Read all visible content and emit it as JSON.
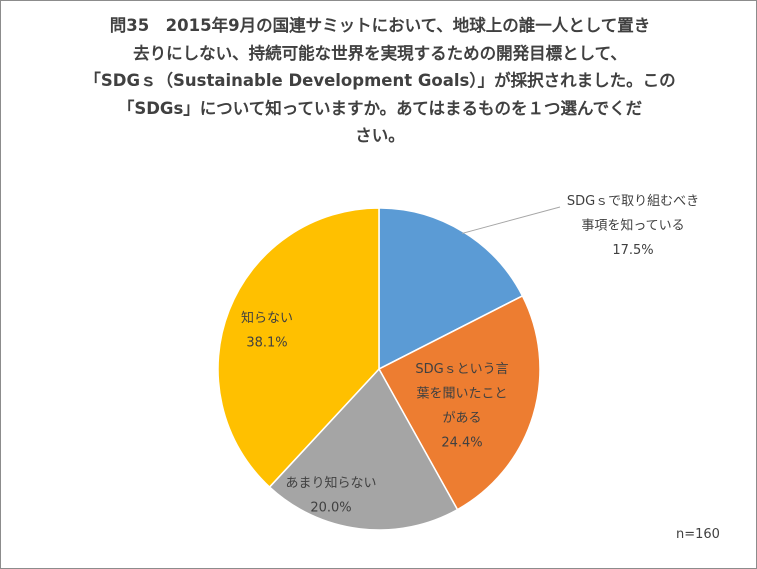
{
  "title_lines": [
    "問35　2015年9月の国連サミットにおいて、地球上の誰一人として置き",
    "去りにしない、持続可能な世界を実現するための開発目標として、",
    "「SDGｓ（Sustainable Development Goals）」が採択されました。この",
    "「SDGs」について知っていますか。あてはまるものを１つ選んでくだ",
    "さい。"
  ],
  "sample_size": "n=160",
  "chart_data": {
    "type": "pie",
    "start": "12 o'clock",
    "direction": "clockwise",
    "slices": [
      {
        "label_lines": [
          "SDGｓで取り組むべき",
          "事項を知っている"
        ],
        "value": 17.5,
        "pct": "17.5%",
        "color": "#5b9bd5"
      },
      {
        "label_lines": [
          "SDGｓという言",
          "葉を聞いたこと",
          "がある"
        ],
        "value": 24.4,
        "pct": "24.4%",
        "color": "#ed7d31"
      },
      {
        "label_lines": [
          "あまり知らない"
        ],
        "value": 20.0,
        "pct": "20.0%",
        "color": "#a5a5a5"
      },
      {
        "label_lines": [
          "知らない"
        ],
        "value": 38.1,
        "pct": "38.1%",
        "color": "#ffc000"
      }
    ]
  }
}
